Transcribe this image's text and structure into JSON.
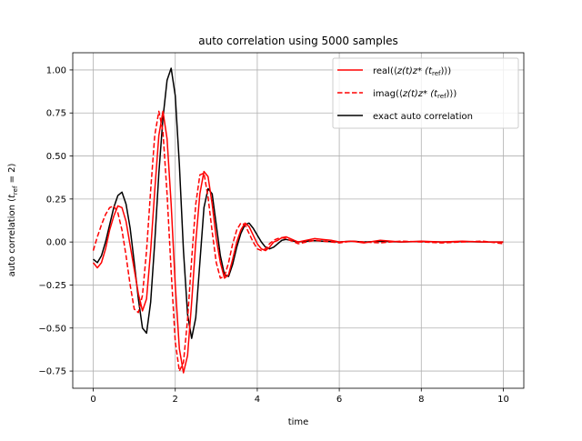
{
  "chart_data": {
    "type": "line",
    "title": "auto correlation using 5000 samples",
    "xlabel": "time",
    "ylabel": "auto correlation (t_ref = 2)",
    "ylabel_parts": {
      "prefix": "auto correlation (",
      "t": "t",
      "sub": "ref",
      "suffix": " = 2)"
    },
    "xlim": [
      -0.5,
      10.5
    ],
    "ylim": [
      -0.85,
      1.1
    ],
    "xticks": [
      0,
      2,
      4,
      6,
      8,
      10
    ],
    "xtick_labels": [
      "0",
      "2",
      "4",
      "6",
      "8",
      "10"
    ],
    "yticks": [
      -0.75,
      -0.5,
      -0.25,
      0.0,
      0.25,
      0.5,
      0.75,
      1.0
    ],
    "ytick_labels": [
      "−0.75",
      "−0.50",
      "−0.25",
      "0.00",
      "0.25",
      "0.50",
      "0.75",
      "1.00"
    ],
    "grid": true,
    "legend_position": "top-right",
    "series": [
      {
        "name": "real(⟨z(t)z*(t_ref)⟩)",
        "name_parts": {
          "prefix": "real(⟨",
          "mid": "z(t)z* (t",
          "sub": "ref",
          "suffix": ")⟩)"
        },
        "color": "#ff0000",
        "style": "solid",
        "x": [
          0,
          0.1,
          0.2,
          0.3,
          0.4,
          0.5,
          0.6,
          0.7,
          0.8,
          0.9,
          1.0,
          1.1,
          1.2,
          1.3,
          1.4,
          1.5,
          1.6,
          1.7,
          1.8,
          1.9,
          2.0,
          2.1,
          2.2,
          2.3,
          2.4,
          2.5,
          2.6,
          2.7,
          2.8,
          2.9,
          3.0,
          3.1,
          3.2,
          3.3,
          3.4,
          3.5,
          3.6,
          3.7,
          3.8,
          3.9,
          4.0,
          4.1,
          4.2,
          4.3,
          4.4,
          4.5,
          4.6,
          4.7,
          4.8,
          4.9,
          5.0,
          5.2,
          5.4,
          5.6,
          5.8,
          6.0,
          6.3,
          6.6,
          7.0,
          7.5,
          8.0,
          8.5,
          9.0,
          9.5,
          10.0
        ],
        "y": [
          -0.12,
          -0.15,
          -0.12,
          -0.04,
          0.07,
          0.15,
          0.21,
          0.2,
          0.12,
          -0.02,
          -0.16,
          -0.3,
          -0.4,
          -0.33,
          -0.05,
          0.3,
          0.62,
          0.76,
          0.6,
          0.22,
          -0.25,
          -0.62,
          -0.76,
          -0.66,
          -0.35,
          0.0,
          0.28,
          0.41,
          0.38,
          0.22,
          0.02,
          -0.12,
          -0.21,
          -0.19,
          -0.1,
          0.0,
          0.07,
          0.11,
          0.09,
          0.04,
          -0.01,
          -0.04,
          -0.05,
          -0.03,
          0.0,
          0.01,
          0.025,
          0.03,
          0.02,
          0.01,
          0.0,
          0.01,
          0.02,
          0.015,
          0.01,
          0.0,
          0.005,
          -0.005,
          0.01,
          0.0,
          0.005,
          0.0,
          0.005,
          0.0,
          0.0
        ]
      },
      {
        "name": "imag(⟨z(t)z*(t_ref)⟩)",
        "name_parts": {
          "prefix": "imag(⟨",
          "mid": "z(t)z* (t",
          "sub": "ref",
          "suffix": ")⟩)"
        },
        "color": "#ff0000",
        "style": "dashed",
        "x": [
          0,
          0.1,
          0.2,
          0.3,
          0.4,
          0.5,
          0.6,
          0.7,
          0.8,
          0.9,
          1.0,
          1.1,
          1.2,
          1.3,
          1.4,
          1.5,
          1.6,
          1.7,
          1.8,
          1.9,
          2.0,
          2.1,
          2.2,
          2.3,
          2.4,
          2.5,
          2.6,
          2.7,
          2.8,
          2.9,
          3.0,
          3.1,
          3.2,
          3.3,
          3.4,
          3.5,
          3.6,
          3.7,
          3.8,
          3.9,
          4.0,
          4.1,
          4.2,
          4.3,
          4.4,
          4.5,
          4.6,
          4.7,
          4.8,
          4.9,
          5.0,
          5.2,
          5.4,
          5.6,
          5.8,
          6.0,
          6.3,
          6.6,
          7.0,
          7.5,
          8.0,
          8.5,
          9.0,
          9.5,
          10.0
        ],
        "y": [
          -0.05,
          0.03,
          0.1,
          0.16,
          0.2,
          0.21,
          0.17,
          0.07,
          -0.08,
          -0.25,
          -0.39,
          -0.41,
          -0.31,
          -0.05,
          0.3,
          0.62,
          0.76,
          0.64,
          0.28,
          -0.17,
          -0.58,
          -0.75,
          -0.7,
          -0.45,
          -0.1,
          0.22,
          0.39,
          0.4,
          0.26,
          0.06,
          -0.12,
          -0.21,
          -0.2,
          -0.12,
          -0.01,
          0.07,
          0.11,
          0.1,
          0.05,
          0.0,
          -0.04,
          -0.05,
          -0.04,
          -0.01,
          0.01,
          0.02,
          0.025,
          0.02,
          0.01,
          0.0,
          -0.01,
          0.0,
          0.01,
          0.005,
          0.0,
          -0.005,
          0.005,
          0.0,
          -0.005,
          0.005,
          0.0,
          -0.005,
          0.0,
          0.005,
          -0.01
        ]
      },
      {
        "name": "exact auto correlation",
        "color": "#000000",
        "style": "solid",
        "x": [
          0,
          0.1,
          0.2,
          0.3,
          0.4,
          0.5,
          0.6,
          0.7,
          0.8,
          0.9,
          1.0,
          1.1,
          1.2,
          1.3,
          1.4,
          1.5,
          1.6,
          1.7,
          1.8,
          1.9,
          2.0,
          2.1,
          2.2,
          2.3,
          2.4,
          2.5,
          2.6,
          2.7,
          2.8,
          2.9,
          3.0,
          3.1,
          3.2,
          3.3,
          3.4,
          3.5,
          3.6,
          3.7,
          3.8,
          3.9,
          4.0,
          4.1,
          4.2,
          4.3,
          4.4,
          4.5,
          4.6,
          4.7,
          4.8,
          4.9,
          5.0,
          5.2,
          5.4,
          5.6,
          5.8,
          6.0,
          6.3,
          6.6,
          7.0,
          7.5,
          8.0,
          8.5,
          9.0,
          9.5,
          10.0
        ],
        "y": [
          -0.1,
          -0.12,
          -0.08,
          0.0,
          0.1,
          0.2,
          0.27,
          0.29,
          0.22,
          0.08,
          -0.12,
          -0.33,
          -0.5,
          -0.53,
          -0.35,
          0.0,
          0.4,
          0.72,
          0.94,
          1.01,
          0.85,
          0.45,
          -0.05,
          -0.42,
          -0.56,
          -0.44,
          -0.12,
          0.2,
          0.31,
          0.28,
          0.1,
          -0.08,
          -0.19,
          -0.2,
          -0.13,
          -0.03,
          0.05,
          0.1,
          0.11,
          0.08,
          0.04,
          0.0,
          -0.03,
          -0.04,
          -0.03,
          -0.01,
          0.01,
          0.015,
          0.01,
          0.005,
          0.0,
          0.005,
          0.008,
          0.005,
          0.002,
          0.0,
          0.005,
          0.0,
          0.004,
          0.0,
          0.003,
          0.0,
          0.002,
          0.0,
          0.0
        ]
      }
    ]
  }
}
